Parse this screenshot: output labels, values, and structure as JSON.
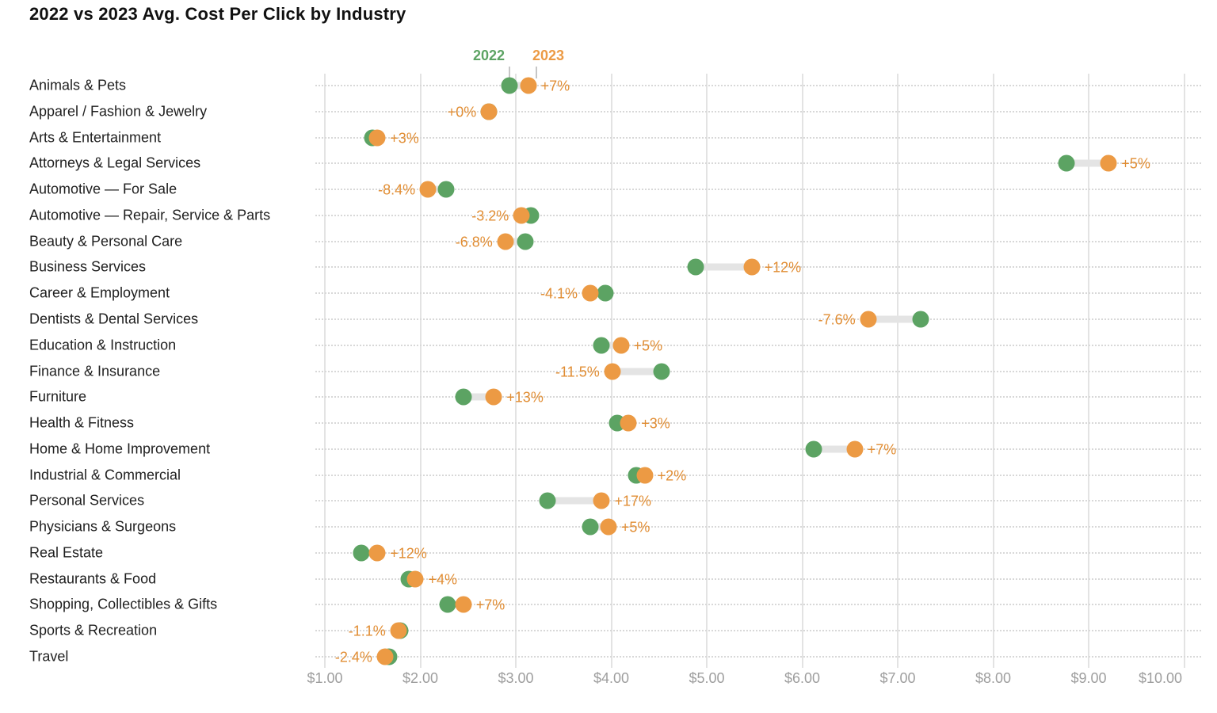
{
  "title": "2022 vs 2023 Avg. Cost Per Click by Industry",
  "legend": {
    "label_2022": "2022",
    "label_2023": "2023"
  },
  "colors": {
    "green_2022": "#5ca363",
    "orange_2023": "#ec9a44",
    "pct_label": "#e18d33",
    "connector": "#e4e4e4",
    "gridline": "#e3e3e3",
    "row_dotted_line": "#d8d8d8",
    "axis_label": "#9e9e9e",
    "category_label": "#1f1f1f",
    "title_text": "#111111",
    "legend_pointer": "#c6c6c6"
  },
  "chart_data": {
    "type": "dumbbell",
    "title": "2022 vs 2023 Avg. Cost Per Click by Industry",
    "series_names": [
      "2022",
      "2023"
    ],
    "x_axis": {
      "min": 1,
      "max": 10,
      "tick_step": 1,
      "tick_labels": [
        "$1.00",
        "$2.00",
        "$3.00",
        "$4.00",
        "$5.00",
        "$6.00",
        "$7.00",
        "$8.00",
        "$9.00",
        "$10.00"
      ],
      "gridlines": true
    },
    "rows": [
      {
        "industry": "Animals & Pets",
        "cpc_2022": 2.93,
        "cpc_2023": 3.13,
        "change": "+7%"
      },
      {
        "industry": "Apparel / Fashion & Jewelry",
        "cpc_2022": 2.72,
        "cpc_2023": 2.72,
        "change": "+0%"
      },
      {
        "industry": "Arts & Entertainment",
        "cpc_2022": 1.5,
        "cpc_2023": 1.55,
        "change": "+3%"
      },
      {
        "industry": "Attorneys & Legal Services",
        "cpc_2022": 8.77,
        "cpc_2023": 9.21,
        "change": "+5%"
      },
      {
        "industry": "Automotive — For Sale",
        "cpc_2022": 2.27,
        "cpc_2023": 2.08,
        "change": "-8.4%"
      },
      {
        "industry": "Automotive — Repair, Service & Parts",
        "cpc_2022": 3.16,
        "cpc_2023": 3.06,
        "change": "-3.2%"
      },
      {
        "industry": "Beauty & Personal Care",
        "cpc_2022": 3.1,
        "cpc_2023": 2.89,
        "change": "-6.8%"
      },
      {
        "industry": "Business Services",
        "cpc_2022": 4.88,
        "cpc_2023": 5.47,
        "change": "+12%"
      },
      {
        "industry": "Career & Employment",
        "cpc_2022": 3.94,
        "cpc_2023": 3.78,
        "change": "-4.1%"
      },
      {
        "industry": "Dentists & Dental Services",
        "cpc_2022": 7.24,
        "cpc_2023": 6.69,
        "change": "-7.6%"
      },
      {
        "industry": "Education & Instruction",
        "cpc_2022": 3.9,
        "cpc_2023": 4.1,
        "change": "+5%"
      },
      {
        "industry": "Finance & Insurance",
        "cpc_2022": 4.53,
        "cpc_2023": 4.01,
        "change": "-11.5%"
      },
      {
        "industry": "Furniture",
        "cpc_2022": 2.45,
        "cpc_2023": 2.77,
        "change": "+13%"
      },
      {
        "industry": "Health & Fitness",
        "cpc_2022": 4.06,
        "cpc_2023": 4.18,
        "change": "+3%"
      },
      {
        "industry": "Home & Home Improvement",
        "cpc_2022": 6.12,
        "cpc_2023": 6.55,
        "change": "+7%"
      },
      {
        "industry": "Industrial & Commercial",
        "cpc_2022": 4.26,
        "cpc_2023": 4.35,
        "change": "+2%"
      },
      {
        "industry": "Personal Services",
        "cpc_2022": 3.33,
        "cpc_2023": 3.9,
        "change": "+17%"
      },
      {
        "industry": "Physicians & Surgeons",
        "cpc_2022": 3.78,
        "cpc_2023": 3.97,
        "change": "+5%"
      },
      {
        "industry": "Real Estate",
        "cpc_2022": 1.38,
        "cpc_2023": 1.55,
        "change": "+12%"
      },
      {
        "industry": "Restaurants & Food",
        "cpc_2022": 1.88,
        "cpc_2023": 1.95,
        "change": "+4%"
      },
      {
        "industry": "Shopping, Collectibles & Gifts",
        "cpc_2022": 2.29,
        "cpc_2023": 2.45,
        "change": "+7%"
      },
      {
        "industry": "Sports & Recreation",
        "cpc_2022": 1.79,
        "cpc_2023": 1.77,
        "change": "-1.1%"
      },
      {
        "industry": "Travel",
        "cpc_2022": 1.67,
        "cpc_2023": 1.63,
        "change": "-2.4%"
      }
    ]
  }
}
